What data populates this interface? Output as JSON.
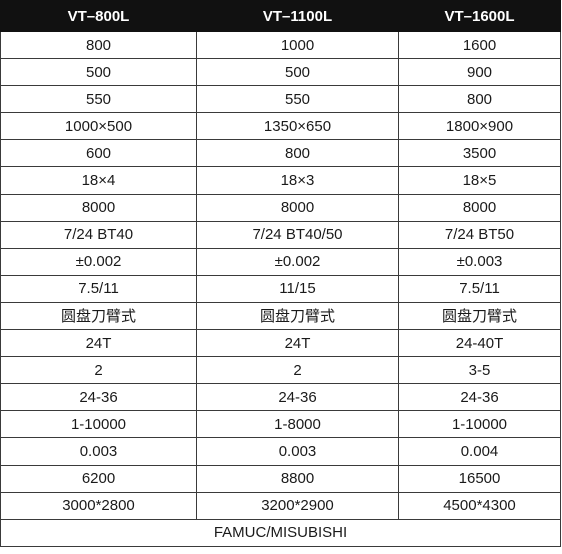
{
  "table": {
    "headers": [
      "VT–800L",
      "VT–1100L",
      "VT–1600L"
    ],
    "rows": [
      [
        "800",
        "1000",
        "1600"
      ],
      [
        "500",
        "500",
        "900"
      ],
      [
        "550",
        "550",
        "800"
      ],
      [
        "1000×500",
        "1350×650",
        "1800×900"
      ],
      [
        "600",
        "800",
        "3500"
      ],
      [
        "18×4",
        "18×3",
        "18×5"
      ],
      [
        "8000",
        "8000",
        "8000"
      ],
      [
        "7/24 BT40",
        "7/24 BT40/50",
        "7/24 BT50"
      ],
      [
        "±0.002",
        "±0.002",
        "±0.003"
      ],
      [
        "7.5/11",
        "11/15",
        "7.5/11"
      ],
      [
        "圆盘刀臂式",
        "圆盘刀臂式",
        "圆盘刀臂式"
      ],
      [
        "24T",
        "24T",
        "24-40T"
      ],
      [
        "2",
        "2",
        "3-5"
      ],
      [
        "24-36",
        "24-36",
        "24-36"
      ],
      [
        "1-10000",
        "1-8000",
        "1-10000"
      ],
      [
        "0.003",
        "0.003",
        "0.004"
      ],
      [
        "6200",
        "8800",
        "16500"
      ],
      [
        "3000*2800",
        "3200*2900",
        "4500*4300"
      ]
    ],
    "footer": "FAMUC/MISUBISHI"
  }
}
